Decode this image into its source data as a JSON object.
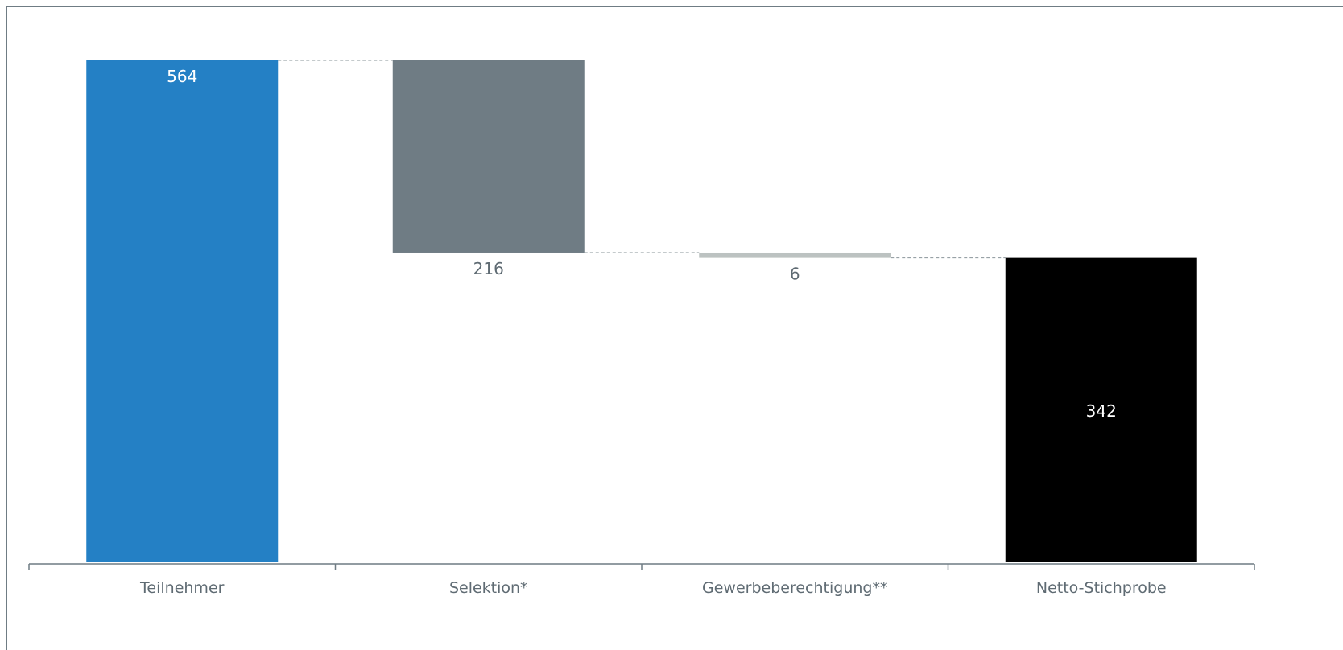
{
  "chart_data": {
    "type": "bar",
    "variant": "waterfall",
    "categories": [
      "Teilnehmer",
      "Selektion*",
      "Gewerbeberechtigung**",
      "Netto-Stichprobe"
    ],
    "values": [
      564,
      -216,
      -6,
      342
    ],
    "value_labels": [
      "564",
      "216",
      "6",
      "342"
    ],
    "bar_kinds": [
      "total",
      "decrease",
      "decrease",
      "total"
    ],
    "colors": [
      "#2480c5",
      "#6f7c84",
      "#bcc2c1",
      "#000000"
    ],
    "label_colors": [
      "#ffffff",
      "#5f6b73",
      "#5f6b73",
      "#ffffff"
    ],
    "ylim": [
      0,
      564
    ],
    "grid": false,
    "legend": "none",
    "connector_lines": true
  }
}
